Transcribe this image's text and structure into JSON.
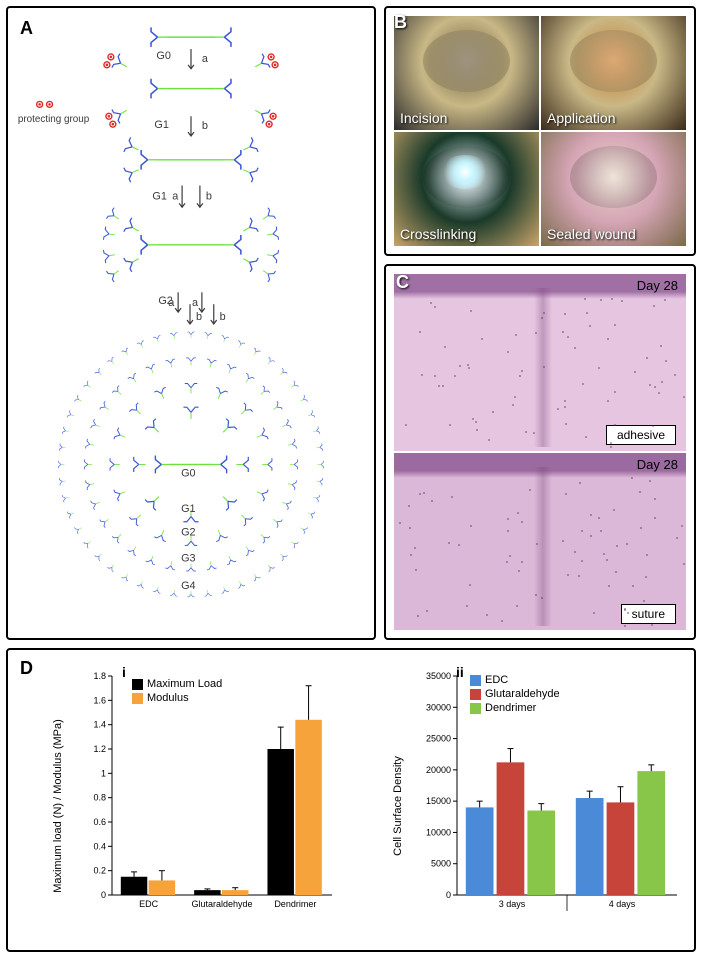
{
  "panelA": {
    "label": "A",
    "protecting_group_label": "protecting group",
    "generation_labels": [
      "G0",
      "G1",
      "G1",
      "G2",
      "G0",
      "G1",
      "G2",
      "G3",
      "G4"
    ],
    "arrow_labels_a": "a",
    "arrow_labels_b": "b",
    "colors": {
      "branch": "#3a56d6",
      "connector": "#6ae23a",
      "protecting": "#e22828",
      "arrow": "#3a3a3a",
      "text": "#3a3a3a"
    }
  },
  "panelB": {
    "label": "B",
    "photos": [
      {
        "caption": "Incision",
        "bg": "#c9b886",
        "overlay": "#6a5a3a",
        "overlay2": "#2a2a2a"
      },
      {
        "caption": "Application",
        "bg": "#c9b886",
        "overlay": "#c97a2a",
        "overlay2": "#3a2a1a"
      },
      {
        "caption": "Crosslinking",
        "bg": "#1a3a2a",
        "overlay": "#e5f5ff",
        "overlay2": "#c9a56a"
      },
      {
        "caption": "Sealed wound",
        "bg": "#d5a5b5",
        "overlay": "#e5d5c5",
        "overlay2": "#7a6a4a"
      }
    ]
  },
  "panelC": {
    "label": "C",
    "images": [
      {
        "day_label": "Day 28",
        "box_label": "adhesive",
        "bg": "#e5c5e0",
        "layer": "#a070a5"
      },
      {
        "day_label": "Day 28",
        "box_label": "suture",
        "bg": "#dcb8d8",
        "layer": "#9a6aa0"
      }
    ]
  },
  "panelD": {
    "label": "D",
    "chart_i": {
      "sub_label": "i",
      "ylabel": "Maximum load (N) / Modulus (MPa)",
      "ylim": [
        0,
        1.8
      ],
      "ytick_step": 0.2,
      "yticks": [
        "0",
        "0.2",
        "0.4",
        "0.6",
        "0.8",
        "1",
        "1.2",
        "1.4",
        "1.6",
        "1.8"
      ],
      "categories": [
        "EDC",
        "Glutaraldehyde",
        "Dendrimer"
      ],
      "series": [
        {
          "name": "Maximum Load",
          "color": "#000000",
          "values": [
            0.15,
            0.04,
            1.2
          ],
          "errors": [
            0.04,
            0.01,
            0.18
          ]
        },
        {
          "name": "Modulus",
          "color": "#f5a33a",
          "values": [
            0.12,
            0.04,
            1.44
          ],
          "errors": [
            0.08,
            0.02,
            0.28
          ]
        }
      ],
      "bar_width": 0.38,
      "background_color": "#ffffff",
      "axis_color": "#000000"
    },
    "chart_ii": {
      "sub_label": "ii",
      "ylabel": "Cell Surface Density",
      "ylim": [
        0,
        35000
      ],
      "ytick_step": 5000,
      "yticks": [
        "0",
        "5000",
        "10000",
        "15000",
        "20000",
        "25000",
        "30000",
        "35000"
      ],
      "groups": [
        "3 days",
        "4 days"
      ],
      "series": [
        {
          "name": "EDC",
          "color": "#4a8ad6",
          "values": [
            14000,
            15500
          ],
          "errors": [
            1000,
            1100
          ]
        },
        {
          "name": "Glutaraldehyde",
          "color": "#c6443a",
          "values": [
            21200,
            14800
          ],
          "errors": [
            2200,
            2500
          ]
        },
        {
          "name": "Dendrimer",
          "color": "#88c64a",
          "values": [
            13500,
            19800
          ],
          "errors": [
            1100,
            1000
          ]
        }
      ],
      "bar_width": 0.28,
      "background_color": "#ffffff",
      "axis_color": "#000000"
    }
  }
}
